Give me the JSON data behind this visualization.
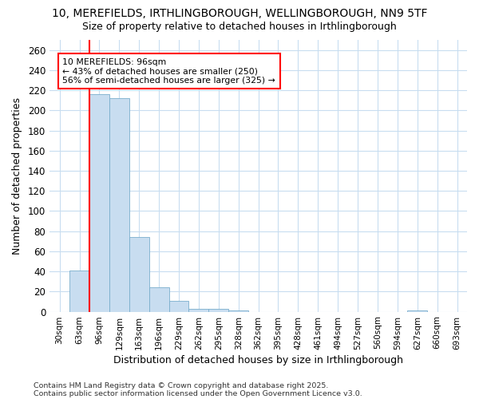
{
  "title1": "10, MEREFIELDS, IRTHLINGBOROUGH, WELLINGBOROUGH, NN9 5TF",
  "title2": "Size of property relative to detached houses in Irthlingborough",
  "xlabel": "Distribution of detached houses by size in Irthlingborough",
  "ylabel": "Number of detached properties",
  "categories": [
    "30sqm",
    "63sqm",
    "96sqm",
    "129sqm",
    "163sqm",
    "196sqm",
    "229sqm",
    "262sqm",
    "295sqm",
    "328sqm",
    "362sqm",
    "395sqm",
    "428sqm",
    "461sqm",
    "494sqm",
    "527sqm",
    "560sqm",
    "594sqm",
    "627sqm",
    "660sqm",
    "693sqm"
  ],
  "values": [
    0,
    41,
    216,
    212,
    74,
    24,
    11,
    3,
    3,
    1,
    0,
    0,
    0,
    0,
    0,
    0,
    0,
    0,
    1,
    0,
    0
  ],
  "bar_color": "#c8ddf0",
  "bar_edge_color": "#7aaecc",
  "red_line_x": 2.5,
  "annotation_text": "10 MEREFIELDS: 96sqm\n← 43% of detached houses are smaller (250)\n56% of semi-detached houses are larger (325) →",
  "ylim": [
    0,
    270
  ],
  "yticks": [
    0,
    20,
    40,
    60,
    80,
    100,
    120,
    140,
    160,
    180,
    200,
    220,
    240,
    260
  ],
  "footer1": "Contains HM Land Registry data © Crown copyright and database right 2025.",
  "footer2": "Contains public sector information licensed under the Open Government Licence v3.0.",
  "bg_color": "#ffffff",
  "grid_color": "#c8ddf0",
  "title_fontsize": 10,
  "subtitle_fontsize": 9
}
